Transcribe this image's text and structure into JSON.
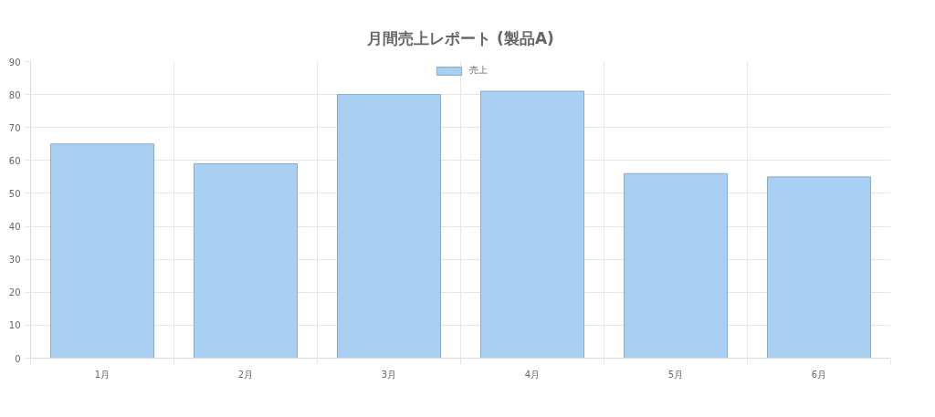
{
  "chart_data": {
    "type": "bar",
    "title": "月間売上レポート (製品A)",
    "categories": [
      "1月",
      "2月",
      "3月",
      "4月",
      "5月",
      "6月"
    ],
    "series": [
      {
        "name": "売上",
        "color": "#a9cff2",
        "values": [
          65,
          59,
          80,
          81,
          56,
          55
        ]
      }
    ],
    "ylim": [
      0,
      90
    ],
    "yticks": [
      0,
      10,
      20,
      30,
      40,
      50,
      60,
      70,
      80,
      90
    ],
    "grid": true,
    "legend": "top"
  }
}
